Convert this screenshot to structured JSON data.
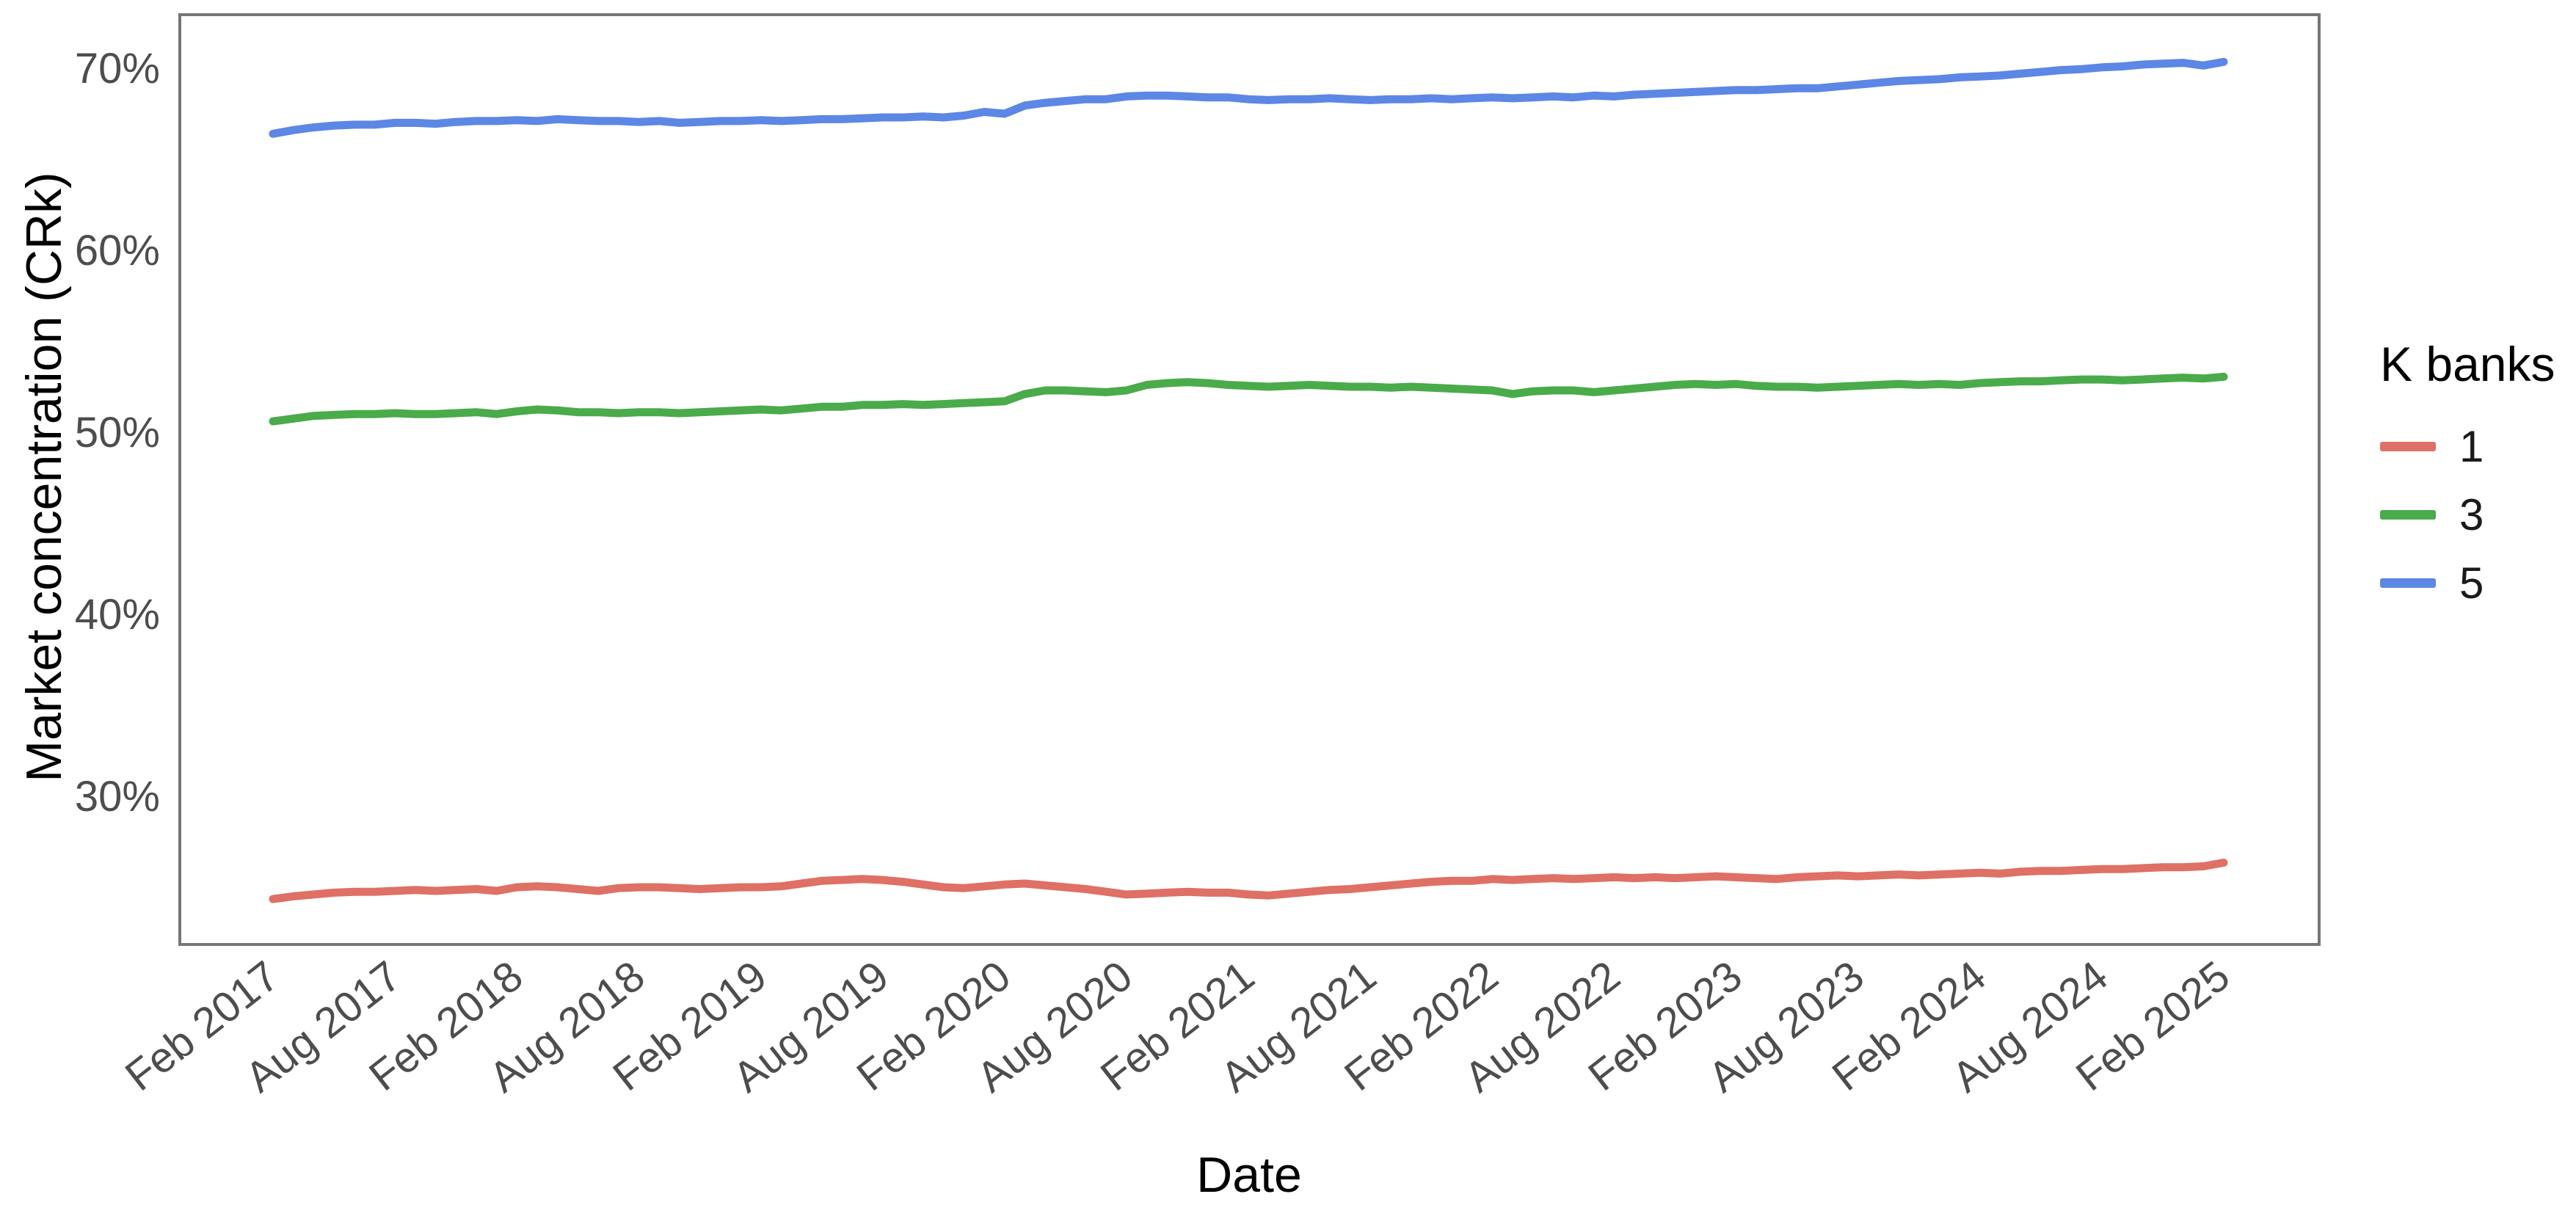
{
  "figure": {
    "background": "#ffffff",
    "kind": "ggplot-style line chart, no gridlines, panel border, legend on right"
  },
  "chart_data": {
    "type": "line",
    "title": "",
    "xlabel": "Date",
    "ylabel": "Market concentration (CRk)",
    "legend_title": "K banks",
    "legend_position": "right",
    "grid": false,
    "x_frequency": "monthly",
    "x_start": "Feb 2017",
    "x_end": "Feb 2025",
    "n_points": 97,
    "x_tick_month_indices": [
      0,
      6,
      12,
      18,
      24,
      30,
      36,
      42,
      48,
      54,
      60,
      66,
      72,
      78,
      84,
      90,
      96
    ],
    "x_tick_labels": [
      "Feb 2017",
      "Aug 2017",
      "Feb 2018",
      "Aug 2018",
      "Feb 2019",
      "Aug 2019",
      "Feb 2020",
      "Aug 2020",
      "Feb 2021",
      "Aug 2021",
      "Feb 2022",
      "Aug 2022",
      "Feb 2023",
      "Aug 2023",
      "Feb 2024",
      "Aug 2024",
      "Feb 2025"
    ],
    "y_ticks": [
      30,
      40,
      50,
      60,
      70
    ],
    "y_tick_labels": [
      "30%",
      "40%",
      "50%",
      "60%",
      "70%"
    ],
    "ylim": [
      21.9,
      72.9
    ],
    "style": {
      "axis_text_color": "#4d4d4d",
      "axis_title_color": "#000000",
      "panel_border_color": "#767676",
      "line_width": 11
    },
    "series": [
      {
        "name": "1",
        "color": "#DF7065",
        "values": [
          24.35,
          24.5,
          24.6,
          24.7,
          24.75,
          24.75,
          24.8,
          24.85,
          24.8,
          24.85,
          24.9,
          24.8,
          25.0,
          25.05,
          25.0,
          24.9,
          24.8,
          24.95,
          25.0,
          25.0,
          24.95,
          24.9,
          24.95,
          25.0,
          25.0,
          25.05,
          25.2,
          25.35,
          25.4,
          25.45,
          25.4,
          25.3,
          25.15,
          25.0,
          24.95,
          25.05,
          25.15,
          25.2,
          25.1,
          25.0,
          24.9,
          24.75,
          24.6,
          24.65,
          24.7,
          24.75,
          24.7,
          24.7,
          24.6,
          24.55,
          24.65,
          24.75,
          24.85,
          24.9,
          25.0,
          25.1,
          25.2,
          25.3,
          25.35,
          25.35,
          25.45,
          25.4,
          25.45,
          25.5,
          25.45,
          25.5,
          25.55,
          25.5,
          25.55,
          25.5,
          25.55,
          25.6,
          25.55,
          25.5,
          25.45,
          25.55,
          25.6,
          25.65,
          25.6,
          25.65,
          25.7,
          25.65,
          25.7,
          25.75,
          25.8,
          25.75,
          25.85,
          25.9,
          25.9,
          25.95,
          26.0,
          26.0,
          26.05,
          26.1,
          26.1,
          26.15,
          26.35
        ]
      },
      {
        "name": "3",
        "color": "#4AAB4A",
        "values": [
          50.6,
          50.75,
          50.9,
          50.95,
          51.0,
          51.0,
          51.05,
          51.0,
          51.0,
          51.05,
          51.1,
          51.0,
          51.15,
          51.25,
          51.2,
          51.1,
          51.1,
          51.05,
          51.1,
          51.1,
          51.05,
          51.1,
          51.15,
          51.2,
          51.25,
          51.2,
          51.3,
          51.4,
          51.4,
          51.5,
          51.5,
          51.55,
          51.5,
          51.55,
          51.6,
          51.65,
          51.7,
          52.1,
          52.3,
          52.3,
          52.25,
          52.2,
          52.3,
          52.6,
          52.7,
          52.75,
          52.7,
          52.6,
          52.55,
          52.5,
          52.55,
          52.6,
          52.55,
          52.5,
          52.5,
          52.45,
          52.5,
          52.45,
          52.4,
          52.35,
          52.3,
          52.1,
          52.25,
          52.3,
          52.3,
          52.2,
          52.3,
          52.4,
          52.5,
          52.6,
          52.65,
          52.6,
          52.65,
          52.55,
          52.5,
          52.5,
          52.45,
          52.5,
          52.55,
          52.6,
          52.65,
          52.6,
          52.65,
          52.6,
          52.7,
          52.75,
          52.8,
          52.8,
          52.85,
          52.9,
          52.9,
          52.85,
          52.9,
          52.95,
          53.0,
          52.95,
          53.05
        ]
      },
      {
        "name": "5",
        "color": "#5C87E5",
        "values": [
          66.4,
          66.6,
          66.75,
          66.85,
          66.9,
          66.9,
          67.0,
          67.0,
          66.95,
          67.05,
          67.1,
          67.1,
          67.15,
          67.1,
          67.2,
          67.15,
          67.1,
          67.1,
          67.05,
          67.1,
          67.0,
          67.05,
          67.1,
          67.1,
          67.15,
          67.1,
          67.15,
          67.2,
          67.2,
          67.25,
          67.3,
          67.3,
          67.35,
          67.3,
          67.4,
          67.6,
          67.5,
          67.95,
          68.1,
          68.2,
          68.3,
          68.3,
          68.45,
          68.5,
          68.5,
          68.45,
          68.4,
          68.4,
          68.3,
          68.25,
          68.3,
          68.3,
          68.35,
          68.3,
          68.25,
          68.3,
          68.3,
          68.35,
          68.3,
          68.35,
          68.4,
          68.35,
          68.4,
          68.45,
          68.4,
          68.5,
          68.45,
          68.55,
          68.6,
          68.65,
          68.7,
          68.75,
          68.8,
          68.8,
          68.85,
          68.9,
          68.9,
          69.0,
          69.1,
          69.2,
          69.3,
          69.35,
          69.4,
          69.5,
          69.55,
          69.6,
          69.7,
          69.8,
          69.9,
          69.95,
          70.05,
          70.1,
          70.2,
          70.25,
          70.3,
          70.15,
          70.35
        ]
      }
    ]
  }
}
